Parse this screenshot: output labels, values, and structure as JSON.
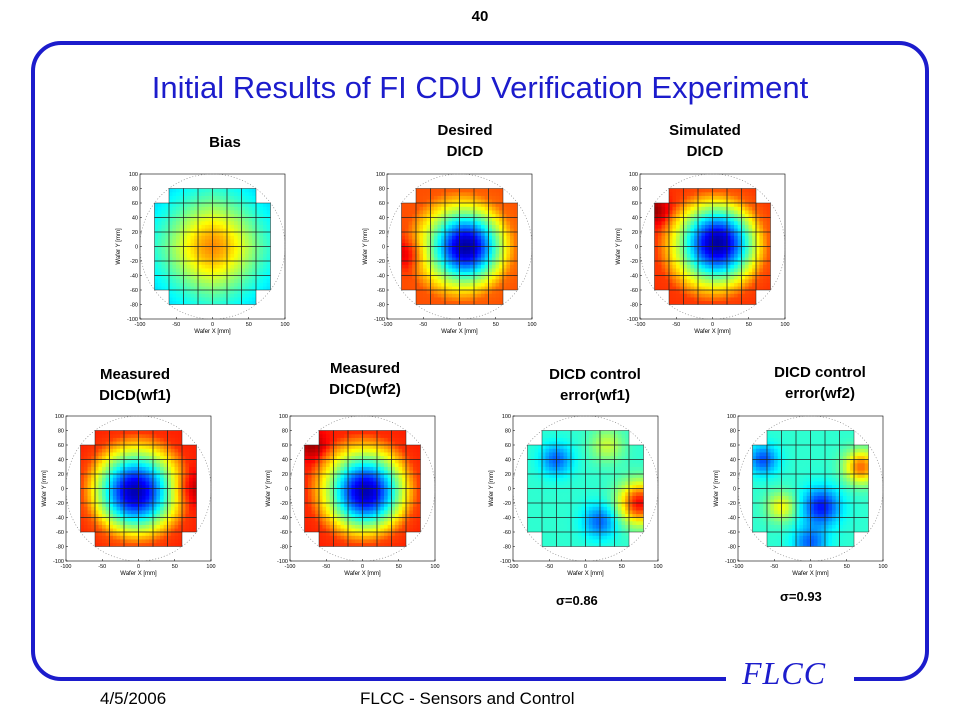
{
  "page_number": "40",
  "title": "Initial Results of FI CDU Verification Experiment",
  "logo_text": "FLCC",
  "footer": {
    "date": "4/5/2006",
    "center": "FLCC - Sensors and Control"
  },
  "colors": {
    "title": "#1c1ccc",
    "frame": "#1c1ccc"
  },
  "axis": {
    "xlabel": "Wafer X [mm]",
    "ylabel": "Wafer Y [mm]",
    "xticks": [
      "-100",
      "-50",
      "0",
      "50",
      "100"
    ],
    "yticks": [
      "100",
      "80",
      "60",
      "40",
      "20",
      "0",
      "-20",
      "-40",
      "-60",
      "-80",
      "-100"
    ]
  },
  "maps": [
    {
      "id": "bias",
      "label": "Bias",
      "sigma": ""
    },
    {
      "id": "desired",
      "label": "Desired\nDICD",
      "sigma": ""
    },
    {
      "id": "simulated",
      "label": "Simulated\nDICD",
      "sigma": ""
    },
    {
      "id": "measured_wf1",
      "label": "Measured\nDICD(wf1)",
      "sigma": ""
    },
    {
      "id": "measured_wf2",
      "label": "Measured\nDICD(wf2)",
      "sigma": ""
    },
    {
      "id": "error_wf1",
      "label": "DICD control\nerror(wf1)",
      "sigma": "σ=0.86"
    },
    {
      "id": "error_wf2",
      "label": "DICD control\nerror(wf2)",
      "sigma": "σ=0.93"
    }
  ]
}
